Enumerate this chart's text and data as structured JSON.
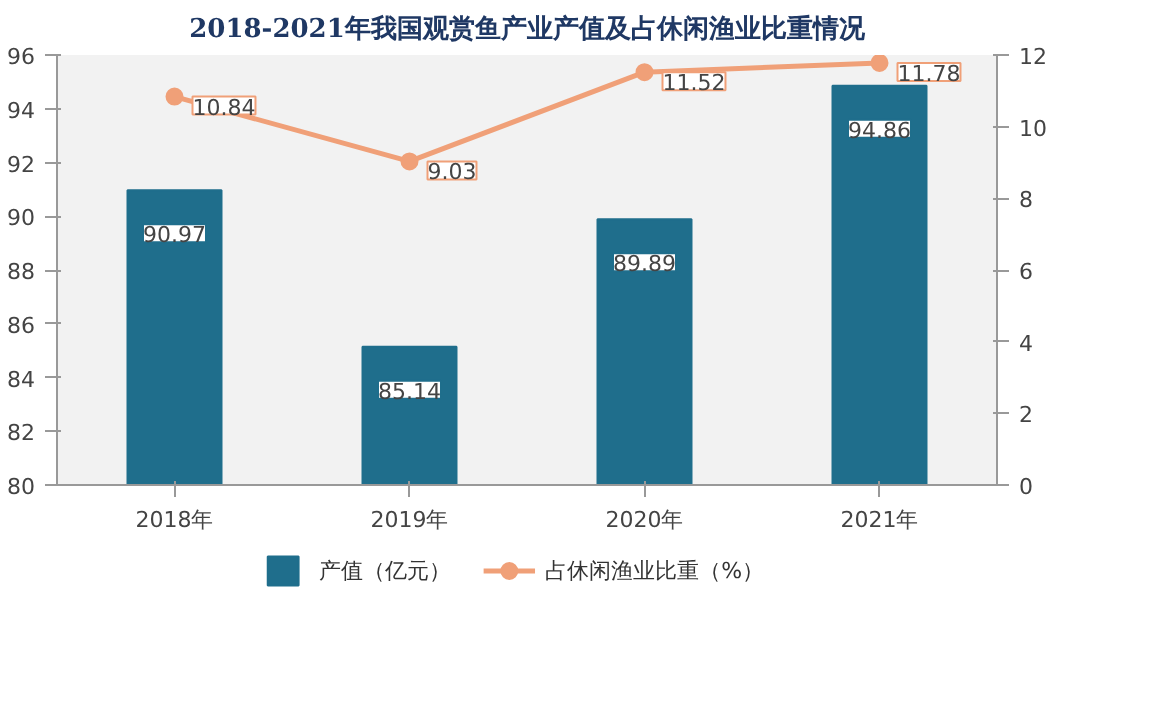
{
  "chart_data": {
    "type": "bar",
    "title": "2018-2021年我国观赏鱼产业产值及占休闲渔业比重情况",
    "categories": [
      "2018年",
      "2019年",
      "2020年",
      "2021年"
    ],
    "series": [
      {
        "name": "产值（亿元）",
        "type": "bar",
        "color": "#1f6e8c",
        "values": [
          90.97,
          85.14,
          89.89,
          94.86
        ]
      },
      {
        "name": "占休闲渔业比重（%）",
        "type": "line",
        "axis": "y2",
        "marker": "circle",
        "color": "#f0a078",
        "values": [
          10.84,
          9.03,
          11.52,
          11.78
        ]
      }
    ],
    "ylim": [
      80,
      96
    ],
    "yticks": [
      80,
      82,
      84,
      86,
      88,
      90,
      92,
      94,
      96
    ],
    "y2lim": [
      0,
      12
    ],
    "y2ticks": [
      0,
      2,
      4,
      6,
      8,
      10,
      12
    ],
    "data_labels": true,
    "legend": "bottom"
  }
}
